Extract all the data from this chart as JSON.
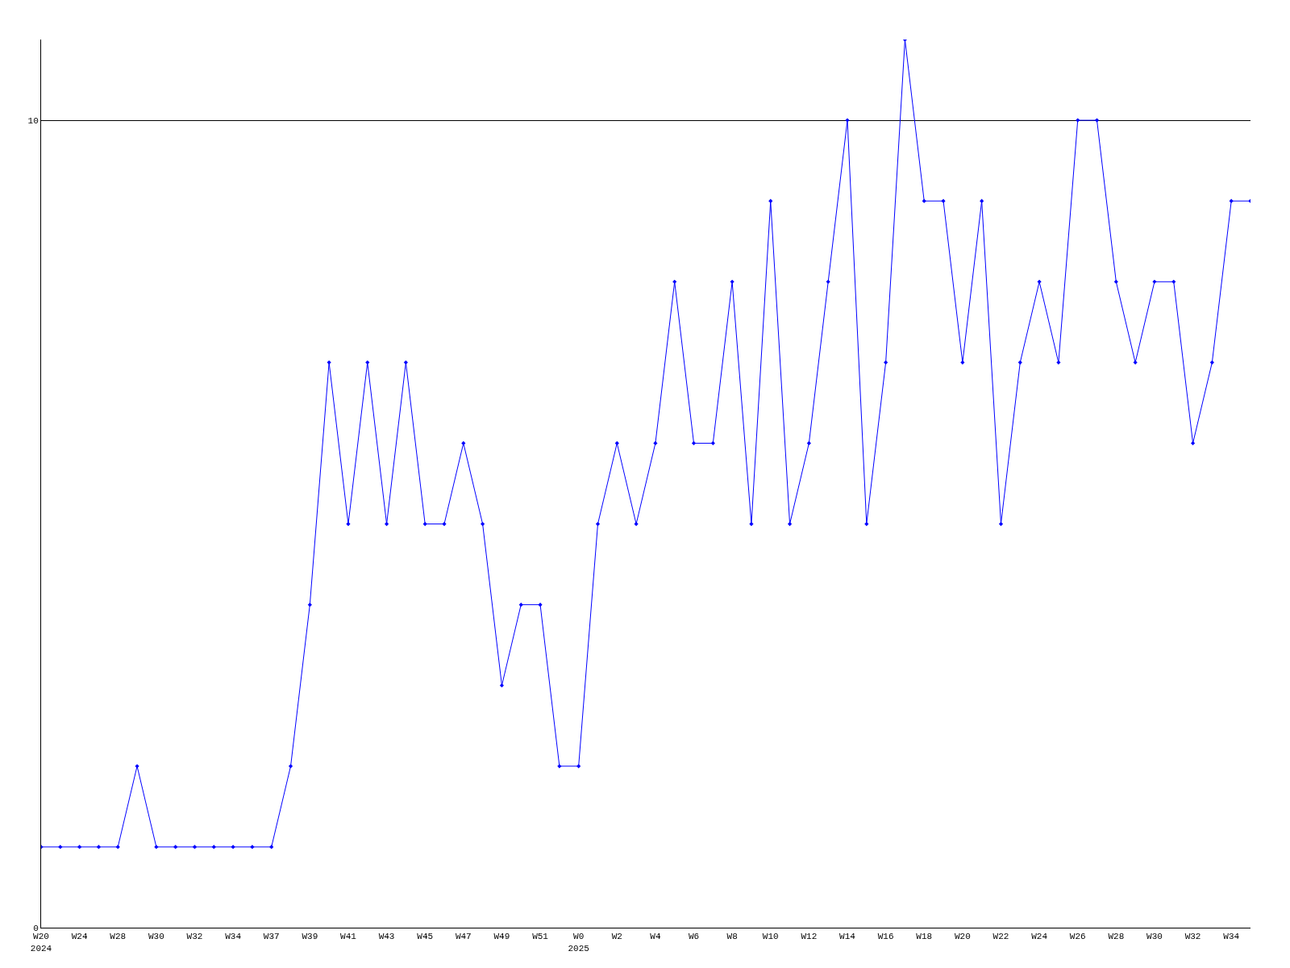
{
  "chart_data": {
    "type": "line",
    "categories": [
      "W20\n2024",
      null,
      "W24",
      null,
      "W28",
      null,
      "W30",
      null,
      "W32",
      null,
      "W34",
      null,
      "W37",
      null,
      "W39",
      null,
      "W41",
      null,
      "W43",
      null,
      "W45",
      null,
      "W47",
      null,
      "W49",
      null,
      "W51",
      null,
      "W0\n2025",
      null,
      "W2",
      null,
      "W4",
      null,
      "W6",
      null,
      "W8",
      null,
      "W10",
      null,
      "W12",
      null,
      "W14",
      null,
      "W16",
      null,
      "W18",
      null,
      "W20",
      null,
      "W22",
      null,
      "W24",
      null,
      "W26",
      null,
      "W28",
      null,
      "W30",
      null,
      "W32",
      null,
      "W34",
      null
    ],
    "series": [
      {
        "color": "#0000ff",
        "values": [
          1,
          1,
          1,
          1,
          1,
          2,
          1,
          1,
          1,
          1,
          1,
          1,
          1,
          2,
          4,
          7,
          5,
          7,
          5,
          7,
          5,
          5,
          6,
          5,
          3,
          4,
          4,
          2,
          2,
          5,
          6,
          5,
          6,
          8,
          6,
          6,
          8,
          5,
          9,
          5,
          6,
          8,
          10,
          5,
          7,
          11,
          9,
          9,
          7,
          9,
          5,
          7,
          8,
          7,
          10,
          10,
          8,
          7,
          8,
          8,
          6,
          7,
          9,
          9
        ]
      }
    ],
    "ylim": [
      0,
      11
    ],
    "yticks": [
      0,
      10
    ],
    "grid": "y",
    "marker": "diamond",
    "line_style": "solid",
    "legend": false
  }
}
